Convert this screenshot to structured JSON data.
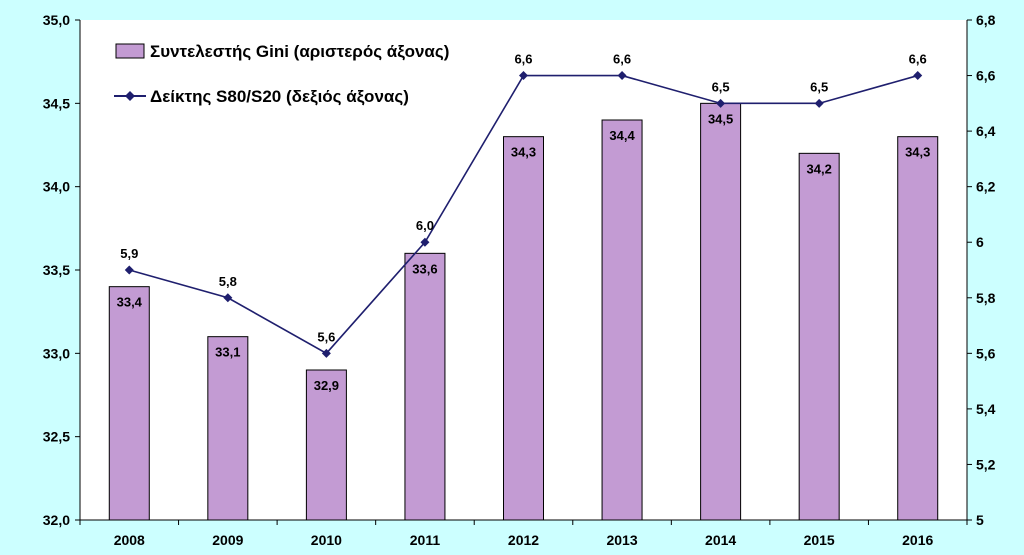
{
  "chart_data": {
    "type": "bar+line",
    "categories": [
      "2008",
      "2009",
      "2010",
      "2011",
      "2012",
      "2013",
      "2014",
      "2015",
      "2016"
    ],
    "series": [
      {
        "name": "Συντελεστής Gini (αριστερός άξονας)",
        "type": "bar",
        "axis": "left",
        "values": [
          33.4,
          33.1,
          32.9,
          33.6,
          34.3,
          34.4,
          34.5,
          34.2,
          34.3
        ],
        "labels": [
          "33,4",
          "33,1",
          "32,9",
          "33,6",
          "34,3",
          "34,4",
          "34,5",
          "34,2",
          "34,3"
        ],
        "color": "#c39bd3"
      },
      {
        "name": "Δείκτης S80/S20 (δεξιός άξονας)",
        "type": "line",
        "axis": "right",
        "values": [
          5.9,
          5.8,
          5.6,
          6.0,
          6.6,
          6.6,
          6.5,
          6.5,
          6.6
        ],
        "labels": [
          "5,9",
          "5,8",
          "5,6",
          "6,0",
          "6,6",
          "6,6",
          "6,5",
          "6,5",
          "6,6"
        ],
        "color": "#1f1f6e"
      }
    ],
    "y_left": {
      "ylim": [
        32.0,
        35.0
      ],
      "ticks": [
        32.0,
        32.5,
        33.0,
        33.5,
        34.0,
        34.5,
        35.0
      ],
      "tick_labels": [
        "32,0",
        "32,5",
        "33,0",
        "33,5",
        "34,0",
        "34,5",
        "35,0"
      ]
    },
    "y_right": {
      "ylim": [
        5.0,
        6.8
      ],
      "ticks": [
        5.0,
        5.2,
        5.4,
        5.6,
        5.8,
        6.0,
        6.2,
        6.4,
        6.6,
        6.8
      ],
      "tick_labels": [
        "5",
        "5,2",
        "5,4",
        "5,6",
        "5,8",
        "6",
        "6,2",
        "6,4",
        "6,6",
        "6,8"
      ]
    },
    "grid": false,
    "legend": "top-left",
    "colors": {
      "background": "#ccffff",
      "plot_background": "#ffffff",
      "bar": "#c39bd3",
      "line": "#1f1f6e"
    }
  }
}
